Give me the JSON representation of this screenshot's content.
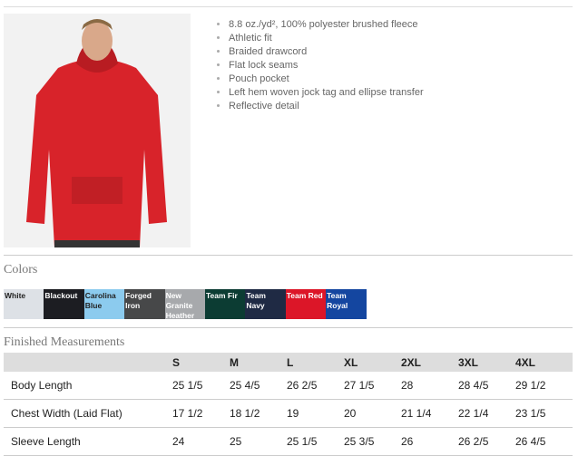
{
  "product": {
    "image_alt": "Man wearing red hoodie"
  },
  "features": [
    "8.8 oz./yd², 100% polyester brushed fleece",
    "Athletic fit",
    "Braided drawcord",
    "Flat lock seams",
    "Pouch pocket",
    "Left hem woven jock tag and ellipse transfer",
    "Reflective detail"
  ],
  "colors_title": "Colors",
  "colors": [
    {
      "name": "White",
      "bg": "#dde1e6",
      "fg": "#222"
    },
    {
      "name": "Blackout",
      "bg": "#1c1d22",
      "fg": "#fff"
    },
    {
      "name": "Carolina Blue",
      "bg": "#8ccbee",
      "fg": "#222"
    },
    {
      "name": "Forged Iron",
      "bg": "#474849",
      "fg": "#fff"
    },
    {
      "name": "New Granite Heather",
      "bg": "#a7a9ac",
      "fg": "#fff"
    },
    {
      "name": "Team Fir",
      "bg": "#0c3c33",
      "fg": "#fff"
    },
    {
      "name": "Team Navy",
      "bg": "#1f2a44",
      "fg": "#fff"
    },
    {
      "name": "Team Red",
      "bg": "#dc1628",
      "fg": "#fff"
    },
    {
      "name": "Team Royal",
      "bg": "#1446a0",
      "fg": "#fff"
    }
  ],
  "measurements_title": "Finished Measurements",
  "measurements": {
    "sizes": [
      "S",
      "M",
      "L",
      "XL",
      "2XL",
      "3XL",
      "4XL"
    ],
    "rows": [
      {
        "label": "Body Length",
        "values": [
          "25 1/5",
          "25 4/5",
          "26 2/5",
          "27 1/5",
          "28",
          "28 4/5",
          "29 1/2"
        ]
      },
      {
        "label": "Chest Width (Laid Flat)",
        "values": [
          "17 1/2",
          "18 1/2",
          "19",
          "20",
          "21 1/4",
          "22 1/4",
          "23 1/5"
        ]
      },
      {
        "label": "Sleeve Length",
        "values": [
          "24",
          "25",
          "25 1/5",
          "25 3/5",
          "26",
          "26 2/5",
          "26 4/5"
        ]
      }
    ]
  }
}
